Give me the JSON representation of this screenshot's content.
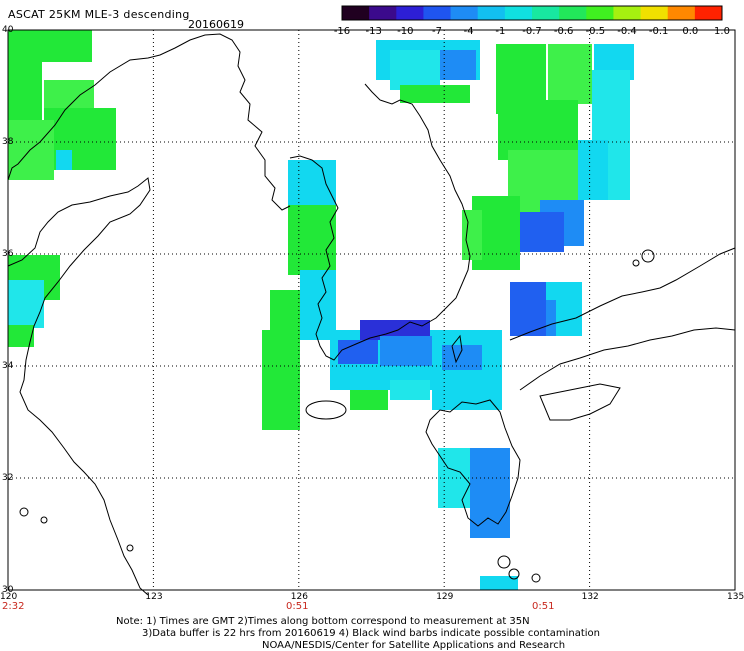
{
  "header": {
    "title": "ASCAT 25KM MLE-3 descending",
    "date": "20160619"
  },
  "colorbar": {
    "labels": [
      "-16",
      "-13",
      "-10",
      "-7",
      "-4",
      "-1",
      "-0.7",
      "-0.6",
      "-0.5",
      "-0.4",
      "-0.1",
      "0.0",
      "1.0"
    ],
    "colors": [
      "#200020",
      "#3b0a8c",
      "#2d1fd6",
      "#1f55f0",
      "#1e8cf5",
      "#12c0f0",
      "#10e0e0",
      "#18e8a0",
      "#22e85a",
      "#40f020",
      "#a6f010",
      "#f0e000",
      "#ff8800",
      "#ff2200"
    ]
  },
  "axes": {
    "lat_labels": [
      "40",
      "38",
      "36",
      "34",
      "32",
      "30"
    ],
    "lon_labels": [
      "120",
      "123",
      "126",
      "129",
      "132",
      "135"
    ]
  },
  "times": [
    "2:32",
    "0:51",
    "0:51"
  ],
  "footer": {
    "line1": "Note: 1) Times are GMT 2)Times along bottom correspond to measurement at 35N",
    "line2": "3)Data buffer is 22 hrs from 20160619 4) Black wind barbs indicate possible contamination",
    "line3": "NOAA/NESDIS/Center for Satellite Applications and Research"
  },
  "map": {
    "lon_range": [
      120,
      135
    ],
    "lat_range": [
      30,
      40
    ],
    "land_color": "#ffffff",
    "grid": "dotted",
    "palette": {
      "green": "#22e838",
      "lgreen": "#3ef04a",
      "cyan": "#12d8f0",
      "lcyan": "#20e6ea",
      "blue": "#1e8cf5",
      "dblue": "#2060f0",
      "navy": "#2a30d8",
      "teal": "#14e0c0"
    }
  }
}
